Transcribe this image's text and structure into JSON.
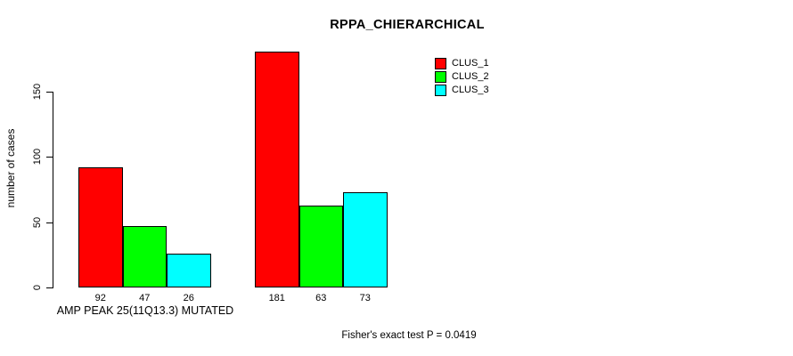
{
  "chart_data": {
    "type": "bar",
    "title": "RPPA_CHIERARCHICAL",
    "xlabel": "",
    "ylabel": "number of cases",
    "ylim": [
      0,
      150
    ],
    "yticks": [
      0,
      50,
      100,
      150
    ],
    "grid": false,
    "legend_position": "top-right",
    "categories": [
      "AMP PEAK 25(11Q13.3) MUTATED",
      ""
    ],
    "series": [
      {
        "name": "CLUS_1",
        "color": "#FF0000",
        "values": [
          92,
          181
        ]
      },
      {
        "name": "CLUS_2",
        "color": "#00FF00",
        "values": [
          47,
          63
        ]
      },
      {
        "name": "CLUS_3",
        "color": "#00FFFF",
        "values": [
          26,
          73
        ]
      }
    ],
    "bar_value_labels": [
      [
        92,
        47,
        26
      ],
      [
        181,
        63,
        73
      ]
    ],
    "annotation": "Fisher's exact test P = 0.0419",
    "axis_color": "#000000",
    "bar_border_color": "#000000"
  }
}
